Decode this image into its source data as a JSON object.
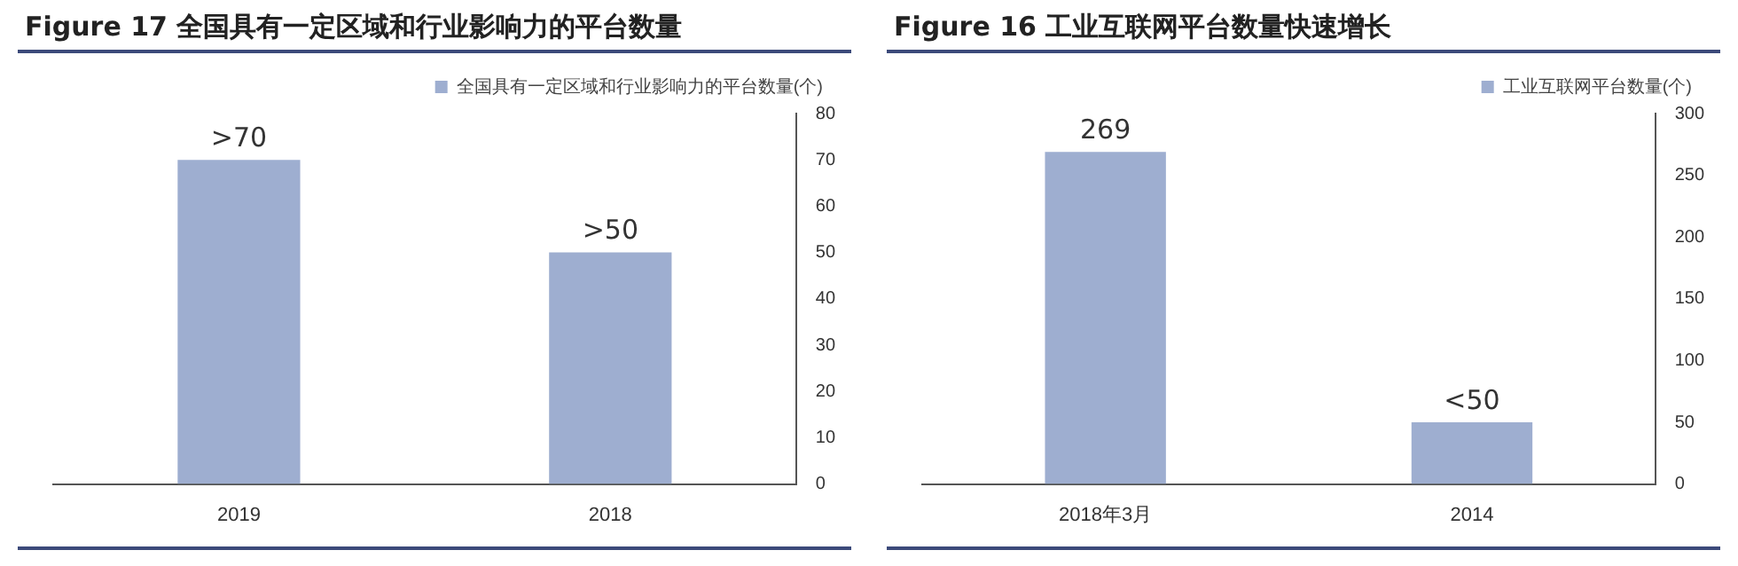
{
  "chart_data": [
    {
      "type": "bar",
      "title": "Figure 17 全国具有一定区域和行业影响力的平台数量",
      "categories": [
        "2019",
        "2018"
      ],
      "series": [
        {
          "name": "全国具有一定区域和行业影响力的平台数量(个)",
          "color": "#9eaed0",
          "values": [
            70,
            50
          ],
          "value_labels": [
            ">70",
            ">50"
          ]
        }
      ],
      "ylim": [
        0,
        80
      ],
      "yticks": [
        0,
        10,
        20,
        30,
        40,
        50,
        60,
        70,
        80
      ],
      "grid": false,
      "legend": "top"
    },
    {
      "type": "bar",
      "title": "Figure 16 工业互联网平台数量快速增长",
      "categories": [
        "2018年3月",
        "2014"
      ],
      "series": [
        {
          "name": "工业互联网平台数量(个)",
          "color": "#9eaed0",
          "values": [
            269,
            50
          ],
          "value_labels": [
            "269",
            "<50"
          ]
        }
      ],
      "ylim": [
        0,
        300
      ],
      "yticks": [
        0,
        50,
        100,
        150,
        200,
        250,
        300
      ],
      "grid": false,
      "legend": "top"
    }
  ]
}
